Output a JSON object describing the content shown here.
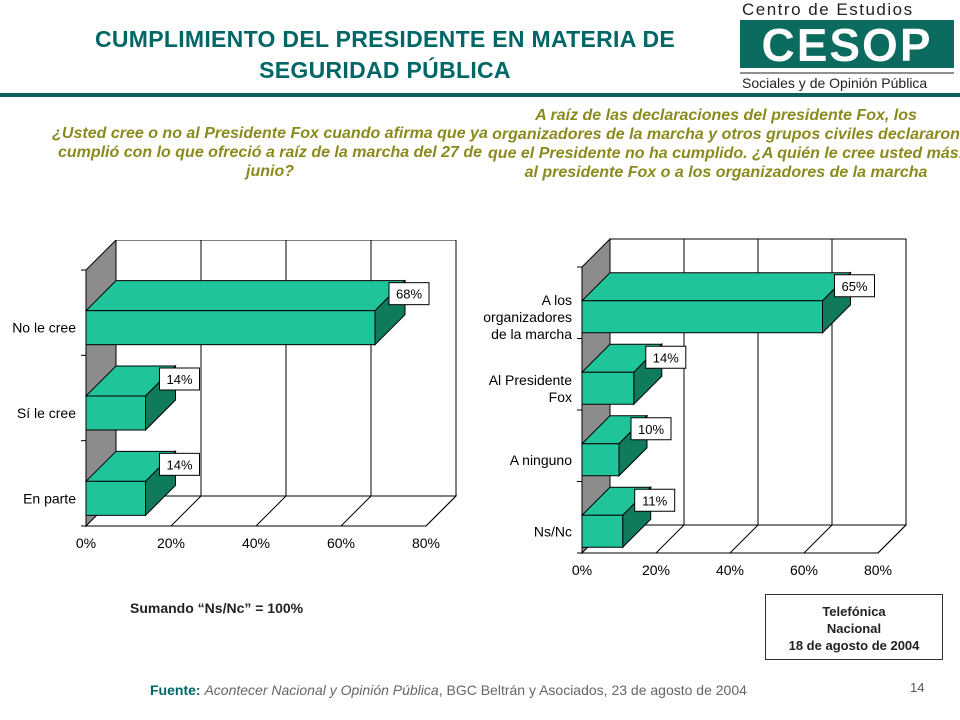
{
  "header": {
    "title_line1": "CUMPLIMIENTO DEL PRESIDENTE EN MATERIA DE",
    "title_line2": "SEGURIDAD PÚBLICA",
    "logo": {
      "line1": "Centro de Estudios",
      "mark": "CESOP",
      "line2": "Sociales y de Opinión Pública"
    }
  },
  "colors": {
    "bar": "#1fc49a",
    "bar_side": "#0f7a5c",
    "wall": "#8c8c8c",
    "title": "#006666",
    "question": "#8a8a1e"
  },
  "questions": {
    "left": "¿Usted cree o no al Presidente Fox cuando afirma que ya cumplió con lo que ofreció a raíz de la marcha del 27 de junio?",
    "right": "A raíz de las declaraciones del presidente Fox, los organizadores de la marcha y otros grupos civiles declararon que el Presidente no ha cumplido. ¿A quién le cree usted más: al presidente Fox o a los organizadores de la marcha"
  },
  "chart_data": [
    {
      "type": "bar",
      "orientation": "horizontal",
      "categories": [
        "No le cree",
        "Sí le cree",
        "En parte"
      ],
      "values": [
        68,
        14,
        14
      ],
      "data_labels": [
        "68%",
        "14%",
        "14%"
      ],
      "xlim": [
        0,
        80
      ],
      "x_ticks": [
        "0%",
        "20%",
        "40%",
        "60%",
        "80%"
      ],
      "grid": "vertical",
      "title": "",
      "xlabel": "",
      "ylabel": ""
    },
    {
      "type": "bar",
      "orientation": "horizontal",
      "categories": [
        "A los organizadores de la marcha",
        "Al Presidente Fox",
        "A ninguno",
        "Ns/Nc"
      ],
      "category_lines": [
        [
          "A los",
          "organizadores",
          "de la marcha"
        ],
        [
          "Al Presidente",
          "Fox"
        ],
        [
          "A ninguno"
        ],
        [
          "Ns/Nc"
        ]
      ],
      "values": [
        65,
        14,
        10,
        11
      ],
      "data_labels": [
        "65%",
        "14%",
        "10%",
        "11%"
      ],
      "xlim": [
        0,
        80
      ],
      "x_ticks": [
        "0%",
        "20%",
        "40%",
        "60%",
        "80%"
      ],
      "grid": "vertical",
      "title": "",
      "xlabel": "",
      "ylabel": ""
    }
  ],
  "notes": {
    "left_note": "Sumando “Ns/Nc” = 100%"
  },
  "source_box": {
    "line1": "Telefónica",
    "line2": "Nacional",
    "line3": "18 de agosto de 2004"
  },
  "footnote": {
    "label": "Fuente:",
    "italic_part": "Acontecer Nacional y Opinión Pública",
    "rest": ", BGC Beltrán y Asociados, 23 de agosto de 2004"
  },
  "page_number": "14"
}
